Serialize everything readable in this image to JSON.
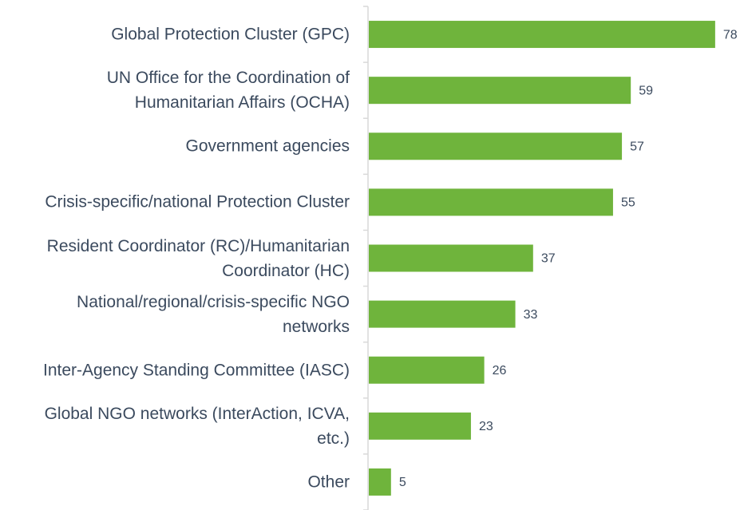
{
  "chart_data": {
    "type": "barh",
    "categories": [
      "Global Protection Cluster (GPC)",
      "UN Office for the Coordination of\nHumanitarian Affairs (OCHA)",
      "Government agencies",
      "Crisis-specific/national Protection Cluster",
      "Resident Coordinator (RC)/Humanitarian\nCoordinator (HC)",
      "National/regional/crisis-specific NGO\nnetworks",
      "Inter-Agency Standing Committee (IASC)",
      "Global NGO networks (InterAction, ICVA,\netc.)",
      "Other"
    ],
    "values": [
      78,
      59,
      57,
      55,
      37,
      33,
      26,
      23,
      5
    ],
    "color": "#6fb43c",
    "xlim": [
      0,
      80
    ]
  }
}
